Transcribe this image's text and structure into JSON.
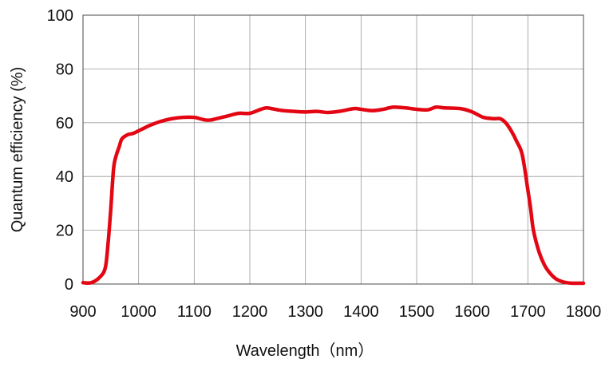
{
  "chart_data": {
    "type": "line",
    "xlabel": "Wavelength（nm）",
    "ylabel": "Quantum efficiency (%)",
    "xlim": [
      900,
      1800
    ],
    "ylim": [
      0,
      100
    ],
    "x_ticks": [
      900,
      1000,
      1100,
      1200,
      1300,
      1400,
      1500,
      1600,
      1700,
      1800
    ],
    "y_ticks": [
      0,
      20,
      40,
      60,
      80,
      100
    ],
    "x_tick_labels": [
      "900",
      "1000",
      "1100",
      "1200",
      "1300",
      "1400",
      "1500",
      "1600",
      "1700",
      "1800"
    ],
    "y_tick_labels": [
      "0",
      "20",
      "40",
      "60",
      "80",
      "100"
    ],
    "grid": true,
    "series": [
      {
        "color": "#e30613",
        "x": [
          900,
          915,
          930,
          940,
          945,
          950,
          955,
          960,
          965,
          970,
          980,
          990,
          1000,
          1010,
          1020,
          1040,
          1060,
          1080,
          1100,
          1110,
          1120,
          1130,
          1140,
          1160,
          1180,
          1200,
          1220,
          1230,
          1240,
          1250,
          1260,
          1280,
          1300,
          1320,
          1340,
          1360,
          1380,
          1390,
          1400,
          1420,
          1440,
          1450,
          1460,
          1480,
          1500,
          1520,
          1535,
          1550,
          1580,
          1600,
          1620,
          1640,
          1650,
          1660,
          1670,
          1680,
          1690,
          1700,
          1705,
          1710,
          1720,
          1730,
          1740,
          1750,
          1760,
          1770,
          1780,
          1790,
          1800
        ],
        "y": [
          0.5,
          0.5,
          2.5,
          6,
          15,
          28,
          43,
          48,
          51,
          54,
          55.5,
          56,
          57,
          58,
          59,
          60.5,
          61.5,
          62,
          62,
          61.5,
          61,
          61,
          61.5,
          62.5,
          63.5,
          63.5,
          65,
          65.5,
          65.2,
          64.8,
          64.5,
          64.2,
          64,
          64.2,
          63.8,
          64.2,
          65,
          65.3,
          65,
          64.5,
          65,
          65.5,
          65.8,
          65.5,
          65,
          64.8,
          65.8,
          65.5,
          65.2,
          64,
          62,
          61.5,
          61.5,
          60,
          57,
          53,
          48,
          35,
          28,
          20,
          12,
          7,
          4,
          2,
          1,
          0.5,
          0.3,
          0.3,
          0.3
        ]
      }
    ]
  }
}
